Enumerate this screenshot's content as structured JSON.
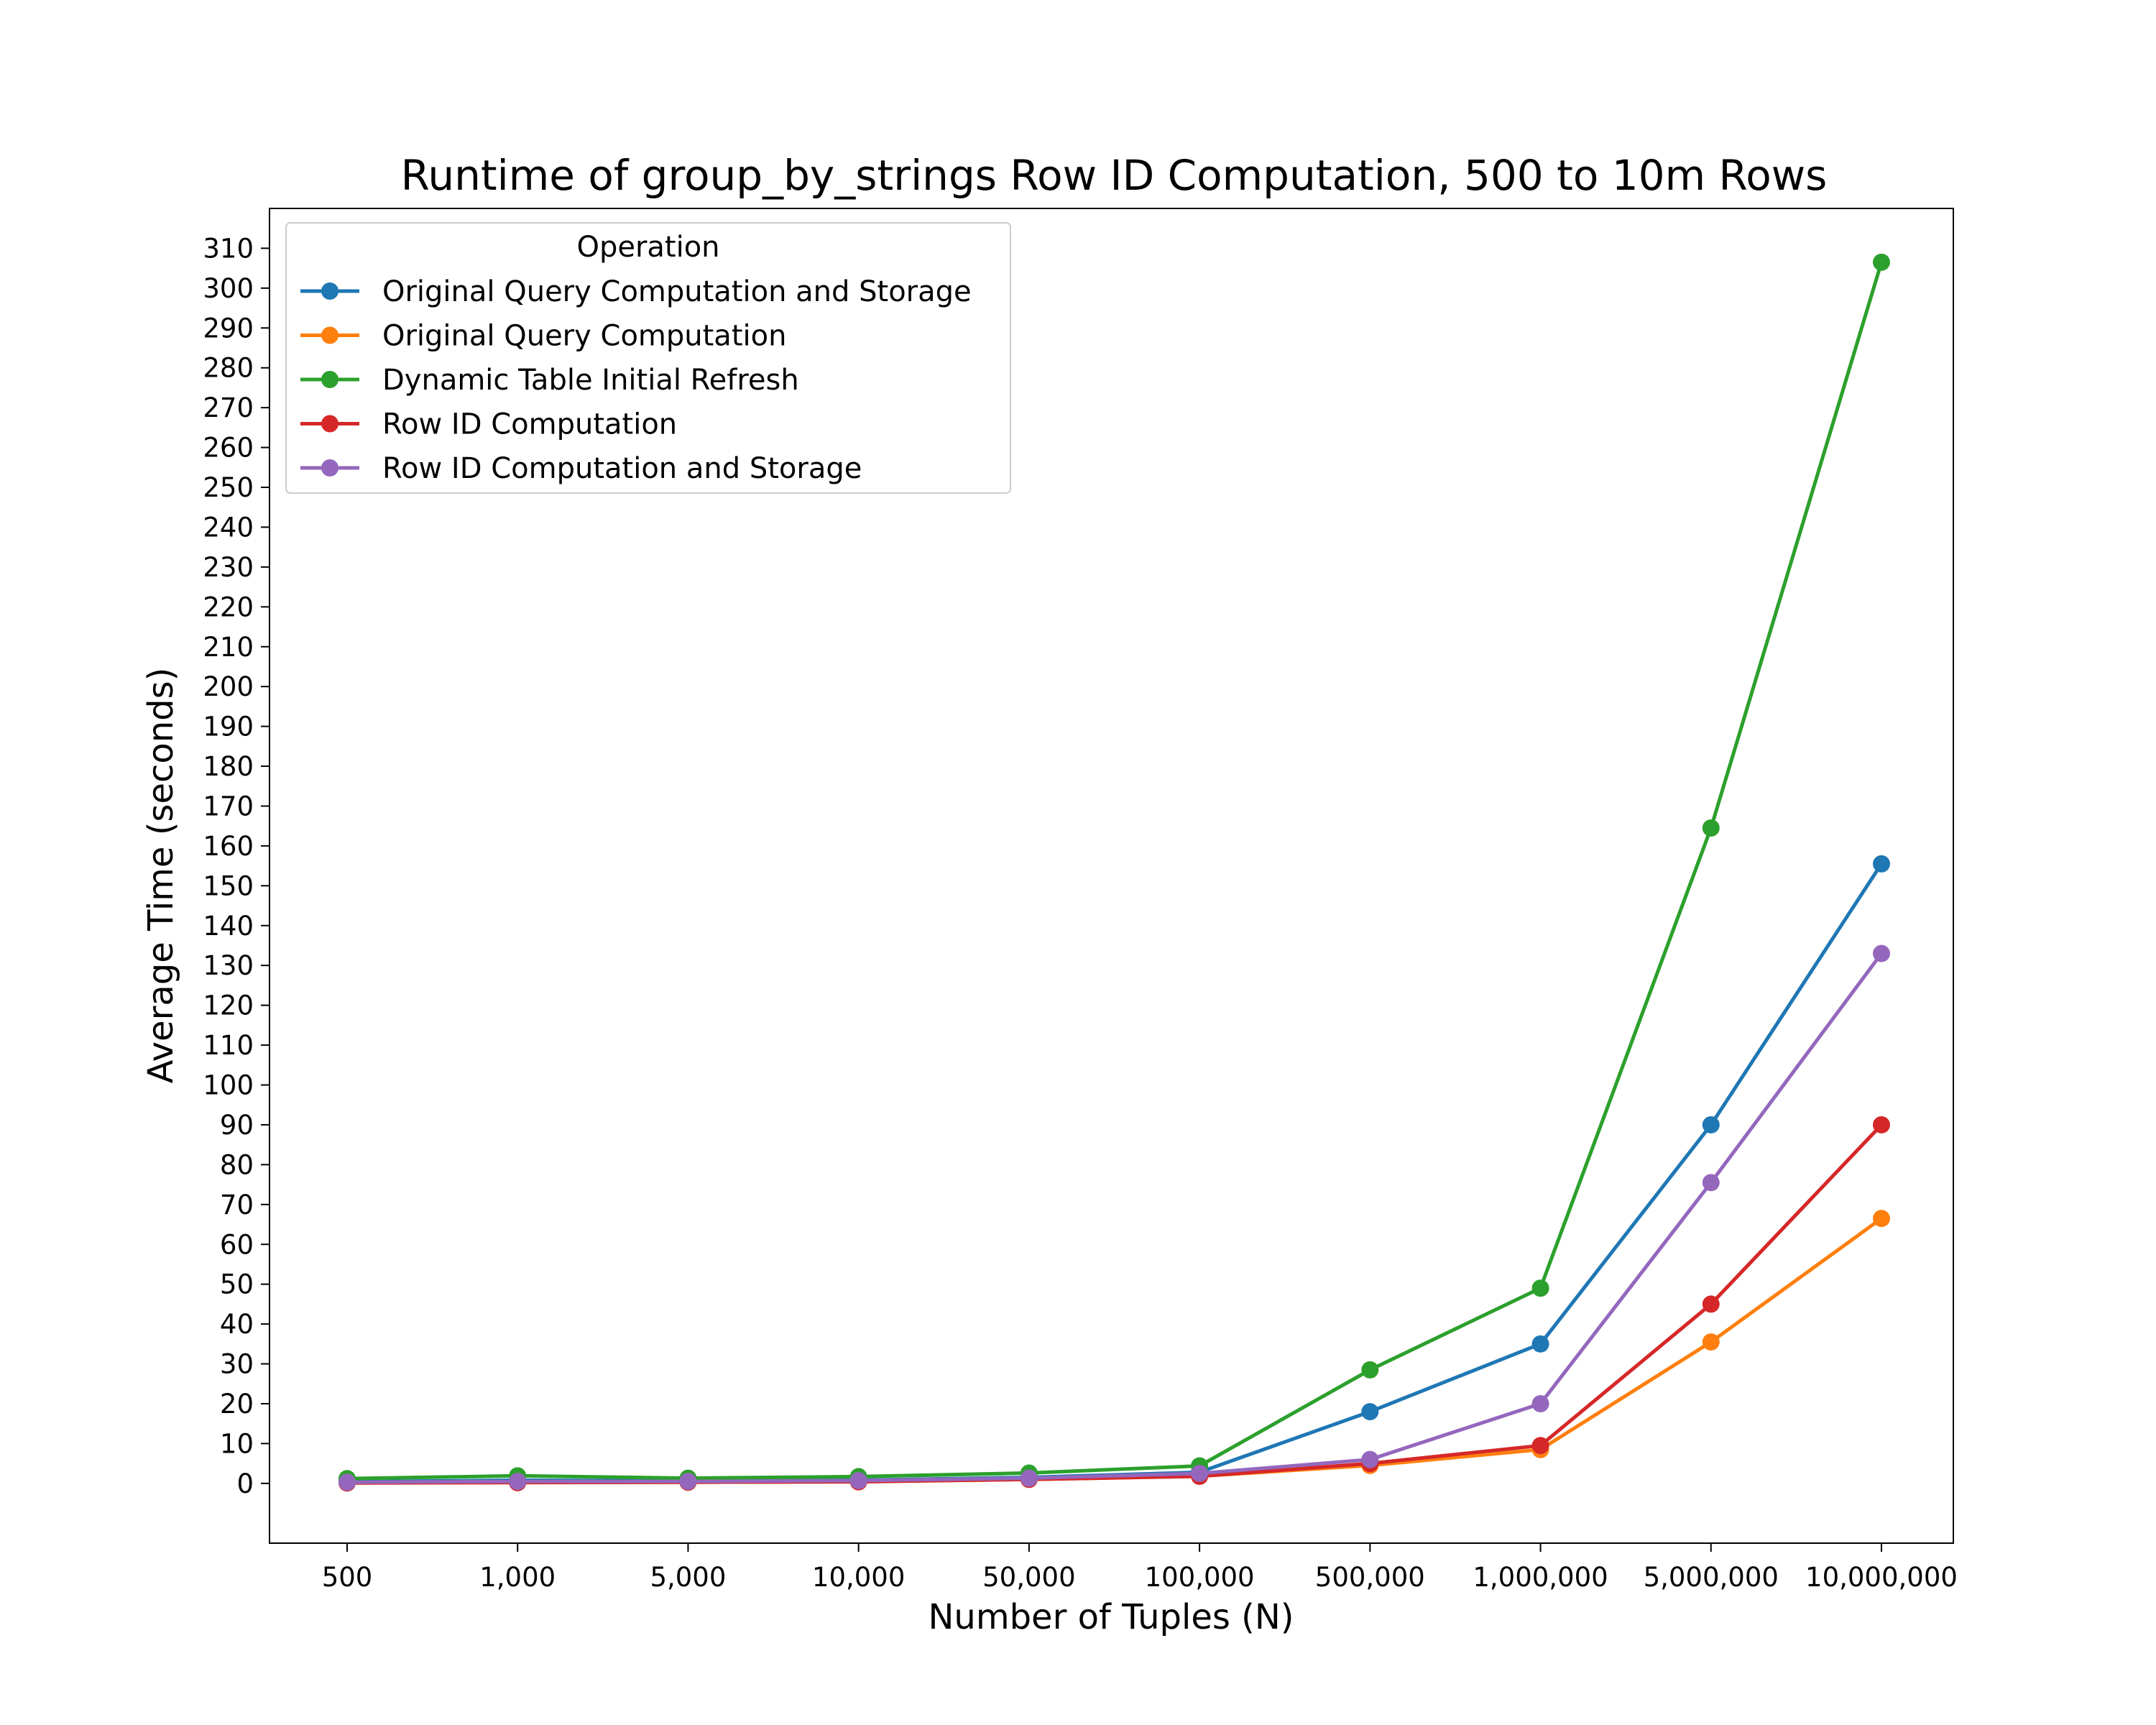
{
  "chart_data": {
    "type": "line",
    "title": "Runtime of group_by_strings Row ID Computation, 500 to 10m Rows",
    "xlabel": "Number of Tuples (N)",
    "ylabel": "Average Time (seconds)",
    "categories": [
      "500",
      "1,000",
      "5,000",
      "10,000",
      "50,000",
      "100,000",
      "500,000",
      "1,000,000",
      "5,000,000",
      "10,000,000"
    ],
    "ylim": [
      -15,
      320
    ],
    "yticks": [
      0,
      10,
      20,
      30,
      40,
      50,
      60,
      70,
      80,
      90,
      100,
      110,
      120,
      130,
      140,
      150,
      160,
      170,
      180,
      190,
      200,
      210,
      220,
      230,
      240,
      250,
      260,
      270,
      280,
      290,
      300,
      310
    ],
    "grid": false,
    "legend": {
      "title": "Operation",
      "position": "top-left"
    },
    "series": [
      {
        "name": "Original Query Computation and Storage",
        "color": "#1f77b4",
        "values": [
          0.4,
          0.8,
          0.6,
          0.8,
          1.5,
          2.8,
          18,
          35,
          90,
          155.5
        ]
      },
      {
        "name": "Original Query Computation",
        "color": "#ff7f0e",
        "values": [
          0.2,
          0.3,
          0.3,
          0.5,
          1.0,
          1.8,
          4.5,
          8.5,
          35.5,
          66.5
        ]
      },
      {
        "name": "Dynamic Table Initial Refresh",
        "color": "#2ca02c",
        "values": [
          1.2,
          1.9,
          1.3,
          1.7,
          2.6,
          4.4,
          28.5,
          49,
          164.5,
          306.5
        ]
      },
      {
        "name": "Row ID Computation",
        "color": "#d62728",
        "values": [
          0.1,
          0.2,
          0.3,
          0.4,
          1.0,
          1.8,
          5,
          9.5,
          45,
          90
        ]
      },
      {
        "name": "Row ID Computation and Storage",
        "color": "#9467bd",
        "values": [
          0.3,
          0.5,
          0.5,
          0.7,
          1.3,
          2.5,
          6,
          20,
          75.5,
          133
        ]
      }
    ]
  }
}
